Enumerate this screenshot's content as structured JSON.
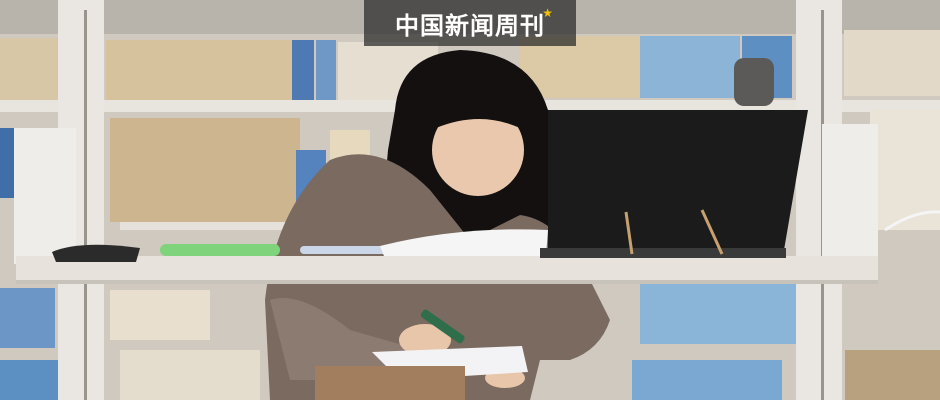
{
  "watermark": {
    "text": "中国新闻周刊",
    "star": "★"
  },
  "colors": {
    "shelf_metal": "#e6e3dd",
    "sweater": "#7a6a60",
    "laptop": "#1a1a1a",
    "marker_cap": "#7fd37a"
  }
}
